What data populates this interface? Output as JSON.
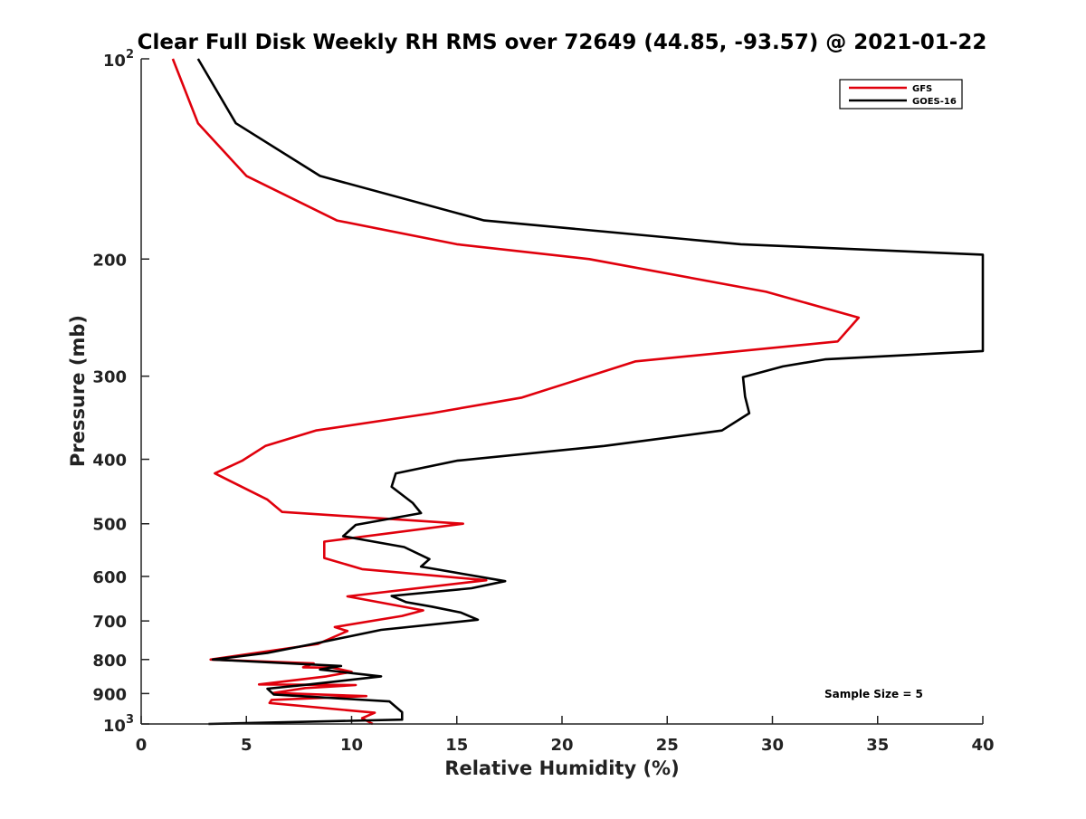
{
  "chart_data": {
    "type": "line",
    "title": "Clear Full Disk Weekly RH RMS over 72649 (44.85, -93.57) @ 2021-01-22",
    "xlabel": "Relative Humidity (%)",
    "ylabel": "Pressure (mb)",
    "xlim": [
      0,
      40
    ],
    "ylim": [
      100,
      1000
    ],
    "y_scale": "log",
    "y_reversed": true,
    "grid": false,
    "legend_position": "top-right",
    "annotation": "Sample Size = 5",
    "x_ticks": [
      0,
      5,
      10,
      15,
      20,
      25,
      30,
      35,
      40
    ],
    "x_tick_labels": [
      "0",
      "5",
      "10",
      "15",
      "20",
      "25",
      "30",
      "35",
      "40"
    ],
    "y_ticks": [
      {
        "value": 100,
        "base": "10",
        "exp": "2"
      },
      {
        "value": 200,
        "label": "200"
      },
      {
        "value": 300,
        "label": "300"
      },
      {
        "value": 400,
        "label": "400"
      },
      {
        "value": 500,
        "label": "500"
      },
      {
        "value": 600,
        "label": "600"
      },
      {
        "value": 700,
        "label": "700"
      },
      {
        "value": 800,
        "label": "800"
      },
      {
        "value": 900,
        "label": "900"
      },
      {
        "value": 1000,
        "base": "10",
        "exp": "3"
      }
    ],
    "series": [
      {
        "name": "GFS",
        "color": "#e0000c",
        "points": [
          [
            1.5,
            100
          ],
          [
            2.7,
            125
          ],
          [
            5.0,
            150
          ],
          [
            9.3,
            175
          ],
          [
            15.0,
            190
          ],
          [
            21.3,
            200
          ],
          [
            29.7,
            224
          ],
          [
            34.1,
            245
          ],
          [
            33.1,
            266
          ],
          [
            23.5,
            285
          ],
          [
            18.1,
            323
          ],
          [
            13.8,
            341
          ],
          [
            8.3,
            362
          ],
          [
            5.9,
            382
          ],
          [
            4.8,
            402
          ],
          [
            3.5,
            420
          ],
          [
            6.0,
            460
          ],
          [
            6.7,
            480
          ],
          [
            15.3,
            500
          ],
          [
            8.7,
            532
          ],
          [
            8.7,
            563
          ],
          [
            10.5,
            585
          ],
          [
            16.4,
            608
          ],
          [
            9.8,
            643
          ],
          [
            13.4,
            675
          ],
          [
            12.4,
            688
          ],
          [
            9.2,
            715
          ],
          [
            9.8,
            725
          ],
          [
            8.4,
            758
          ],
          [
            3.3,
            800
          ],
          [
            8.2,
            811
          ],
          [
            7.7,
            822
          ],
          [
            9.1,
            823
          ],
          [
            10.0,
            835
          ],
          [
            8.8,
            848
          ],
          [
            5.6,
            872
          ],
          [
            10.2,
            874
          ],
          [
            7.8,
            883
          ],
          [
            6.3,
            898
          ],
          [
            10.7,
            908
          ],
          [
            6.2,
            920
          ],
          [
            6.1,
            930
          ],
          [
            11.1,
            962
          ],
          [
            10.5,
            980
          ],
          [
            11.0,
            1000
          ]
        ]
      },
      {
        "name": "GOES-16",
        "color": "#000000",
        "points": [
          [
            2.7,
            100
          ],
          [
            4.5,
            125
          ],
          [
            8.5,
            150
          ],
          [
            16.3,
            175
          ],
          [
            28.5,
            190
          ],
          [
            40.0,
            197
          ],
          [
            40.0,
            275
          ],
          [
            32.5,
            283
          ],
          [
            30.5,
            290
          ],
          [
            28.6,
            301
          ],
          [
            28.7,
            322
          ],
          [
            28.9,
            341
          ],
          [
            27.6,
            362
          ],
          [
            22.0,
            382
          ],
          [
            15.0,
            402
          ],
          [
            12.1,
            420
          ],
          [
            11.9,
            440
          ],
          [
            12.9,
            465
          ],
          [
            13.3,
            482
          ],
          [
            10.2,
            502
          ],
          [
            9.6,
            522
          ],
          [
            12.5,
            542
          ],
          [
            13.7,
            565
          ],
          [
            13.3,
            580
          ],
          [
            17.3,
            610
          ],
          [
            15.7,
            625
          ],
          [
            11.9,
            642
          ],
          [
            12.6,
            656
          ],
          [
            13.8,
            666
          ],
          [
            15.2,
            680
          ],
          [
            16.0,
            697
          ],
          [
            11.4,
            722
          ],
          [
            8.0,
            760
          ],
          [
            6.0,
            782
          ],
          [
            3.4,
            800
          ],
          [
            9.5,
            818
          ],
          [
            8.5,
            828
          ],
          [
            11.4,
            848
          ],
          [
            8.0,
            872
          ],
          [
            6.0,
            885
          ],
          [
            6.3,
            903
          ],
          [
            11.8,
            925
          ],
          [
            12.4,
            960
          ],
          [
            12.4,
            985
          ],
          [
            3.2,
            1000
          ]
        ]
      }
    ]
  }
}
